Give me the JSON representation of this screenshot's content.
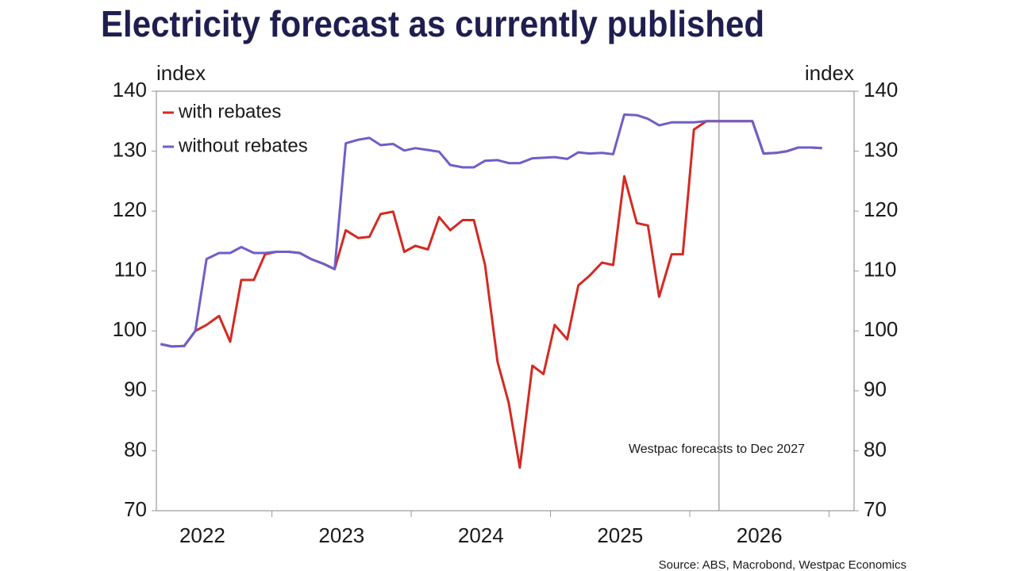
{
  "chart_data": {
    "type": "line",
    "title": "Electricity forecast as currently published",
    "y_label": "index",
    "y2_label": "index",
    "annotation": "Westpac forecasts to Dec 2027",
    "forecast_start": 2026.21,
    "source": "Source: ABS, Macrobond, Westpac Economics",
    "x": [
      2022.2,
      2022.28,
      2022.37,
      2022.45,
      2022.53,
      2022.62,
      2022.7,
      2022.78,
      2022.87,
      2022.95,
      2023.03,
      2023.12,
      2023.2,
      2023.28,
      2023.37,
      2023.45,
      2023.53,
      2023.62,
      2023.7,
      2023.78,
      2023.87,
      2023.95,
      2024.03,
      2024.12,
      2024.2,
      2024.28,
      2024.37,
      2024.45,
      2024.53,
      2024.62,
      2024.7,
      2024.78,
      2024.87,
      2024.95,
      2025.03,
      2025.12,
      2025.2,
      2025.28,
      2025.37,
      2025.45,
      2025.53,
      2025.62,
      2025.7,
      2025.78,
      2025.87,
      2025.95,
      2026.03,
      2026.12,
      2026.2,
      2026.28,
      2026.37,
      2026.45,
      2026.53,
      2026.62,
      2026.7,
      2026.78,
      2026.87,
      2026.95
    ],
    "series": [
      {
        "name": "with rebates",
        "color": "#d42a22",
        "values": [
          97.8,
          97.4,
          97.5,
          100,
          101,
          102.5,
          98.2,
          108.5,
          108.5,
          112.8,
          113.2,
          113.2,
          113,
          112,
          111.2,
          110.3,
          116.8,
          115.5,
          115.7,
          119.5,
          119.9,
          113.2,
          114.2,
          113.6,
          119,
          116.8,
          118.5,
          118.5,
          111,
          94.8,
          88,
          77.2,
          94.2,
          92.8,
          101,
          98.6,
          107.6,
          109.2,
          111.4,
          111,
          125.8,
          118,
          117.6,
          105.7,
          112.8,
          112.8,
          133.6,
          135,
          135,
          135,
          135,
          135,
          129.6,
          129.7,
          130,
          130.6,
          130.6,
          130.5
        ]
      },
      {
        "name": "without rebates",
        "color": "#6e5fc8",
        "values": [
          97.8,
          97.4,
          97.5,
          100,
          112,
          113,
          113,
          114,
          113,
          113,
          113.2,
          113.2,
          113,
          112,
          111.2,
          110.3,
          131.3,
          131.9,
          132.2,
          131,
          131.2,
          130.1,
          130.5,
          130.2,
          129.9,
          127.7,
          127.3,
          127.3,
          128.4,
          128.5,
          128,
          128,
          128.8,
          128.9,
          129,
          128.7,
          129.8,
          129.6,
          129.7,
          129.5,
          136.1,
          136,
          135.4,
          134.3,
          134.8,
          134.8,
          134.8,
          135,
          135,
          135,
          135,
          135,
          129.6,
          129.7,
          130,
          130.6,
          130.6,
          130.5
        ]
      }
    ],
    "xlim": [
      2022.17,
      2027.18
    ],
    "xticks": [
      {
        "value": 2022.5,
        "label": "2022"
      },
      {
        "value": 2023.5,
        "label": "2023"
      },
      {
        "value": 2024.5,
        "label": "2024"
      },
      {
        "value": 2025.5,
        "label": "2025"
      },
      {
        "value": 2026.5,
        "label": "2026"
      }
    ],
    "ylim": [
      70,
      140
    ],
    "yticks": [
      70,
      80,
      90,
      100,
      110,
      120,
      130,
      140
    ],
    "y2lim": [
      70,
      140
    ],
    "y2ticks": [
      70,
      80,
      90,
      100,
      110,
      120,
      130,
      140
    ],
    "grid": false,
    "legend": "upper left"
  }
}
